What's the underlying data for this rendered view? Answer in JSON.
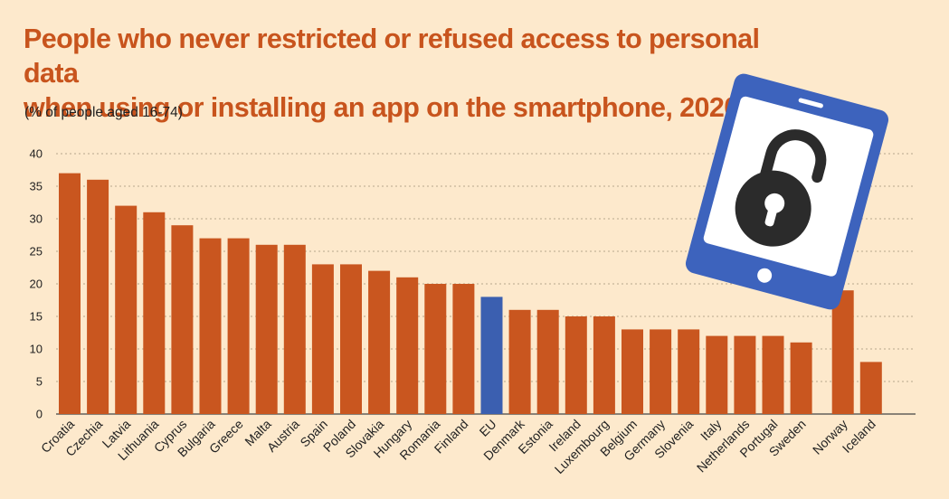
{
  "title_line1": "People who never restricted or refused access to personal data",
  "title_line2": "when using or installing an app on the smartphone, 2020",
  "subtitle": "(% of people aged 16-74)",
  "colors": {
    "background": "#fde9cc",
    "bar": "#c9561f",
    "highlight_bar": "#3b5fb0",
    "title": "#c8541d",
    "gridline": "#b8a68c",
    "phone_frame": "#3d63bd",
    "phone_screen": "#ffffff",
    "lock": "#2b2b2b"
  },
  "illustration": {
    "icon": "smartphone-open-padlock-icon"
  },
  "chart_data": {
    "type": "bar",
    "categories": [
      "Croatia",
      "Czechia",
      "Latvia",
      "Lithuania",
      "Cyprus",
      "Bulgaria",
      "Greece",
      "Malta",
      "Austria",
      "Spain",
      "Poland",
      "Slovakia",
      "Hungary",
      "Romania",
      "Finland",
      "EU",
      "Denmark",
      "Estonia",
      "Ireland",
      "Luxembourg",
      "Belgium",
      "Germany",
      "Slovenia",
      "Italy",
      "Netherlands",
      "Portugal",
      "Sweden",
      "Norway",
      "Iceland"
    ],
    "values": [
      37,
      36,
      32,
      31,
      29,
      27,
      27,
      26,
      26,
      23,
      23,
      22,
      21,
      20,
      20,
      18,
      16,
      16,
      15,
      15,
      13,
      13,
      13,
      12,
      12,
      12,
      11,
      19,
      8
    ],
    "highlight": [
      "EU"
    ],
    "ylim": [
      0,
      40
    ],
    "yticks": [
      0,
      5,
      10,
      15,
      20,
      25,
      30,
      35,
      40
    ],
    "grid": true
  }
}
